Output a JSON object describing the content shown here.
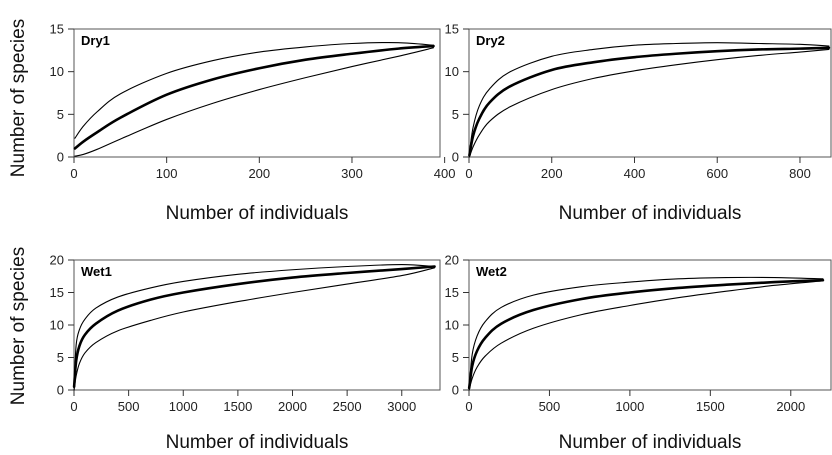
{
  "chart_data": [
    {
      "type": "line",
      "panel_label": "Dry1",
      "xlabel": "Number of individuals",
      "ylabel": "Number of species",
      "xlim": [
        0,
        395
      ],
      "ylim": [
        0,
        15
      ],
      "xticks": [
        0,
        100,
        200,
        300,
        400
      ],
      "yticks": [
        0,
        5,
        10,
        15
      ],
      "grid": false,
      "series": [
        {
          "style": "upper-bound",
          "x": [
            1,
            10,
            25,
            50,
            100,
            150,
            200,
            250,
            300,
            350,
            388
          ],
          "y": [
            2.2,
            3.6,
            5.3,
            7.4,
            9.8,
            11.3,
            12.3,
            12.9,
            13.3,
            13.4,
            13.1
          ]
        },
        {
          "style": "mean",
          "x": [
            1,
            10,
            25,
            50,
            100,
            150,
            200,
            250,
            300,
            350,
            388
          ],
          "y": [
            1.0,
            1.8,
            2.9,
            4.6,
            7.3,
            9.1,
            10.4,
            11.4,
            12.1,
            12.7,
            13.0
          ]
        },
        {
          "style": "lower-bound",
          "x": [
            1,
            10,
            25,
            50,
            100,
            150,
            200,
            250,
            300,
            350,
            388
          ],
          "y": [
            0.1,
            0.3,
            0.9,
            2.1,
            4.4,
            6.3,
            7.9,
            9.3,
            10.6,
            11.8,
            12.8
          ]
        }
      ]
    },
    {
      "type": "line",
      "panel_label": "Dry2",
      "xlabel": "Number of individuals",
      "ylabel": "",
      "xlim": [
        0,
        875
      ],
      "ylim": [
        0,
        15
      ],
      "xticks": [
        0,
        200,
        400,
        600,
        800
      ],
      "yticks": [
        0,
        5,
        10,
        15
      ],
      "grid": false,
      "series": [
        {
          "style": "upper-bound",
          "x": [
            1,
            10,
            25,
            50,
            100,
            200,
            300,
            400,
            500,
            600,
            700,
            800,
            870
          ],
          "y": [
            0.5,
            3.5,
            6.0,
            8.0,
            10.0,
            11.8,
            12.6,
            13.1,
            13.3,
            13.4,
            13.3,
            13.2,
            13.0
          ]
        },
        {
          "style": "mean",
          "x": [
            1,
            10,
            25,
            50,
            100,
            200,
            300,
            400,
            500,
            600,
            700,
            800,
            870
          ],
          "y": [
            0.2,
            2.5,
            4.5,
            6.4,
            8.3,
            10.2,
            11.1,
            11.7,
            12.1,
            12.4,
            12.6,
            12.7,
            12.8
          ]
        },
        {
          "style": "lower-bound",
          "x": [
            1,
            10,
            25,
            50,
            100,
            200,
            300,
            400,
            500,
            600,
            700,
            800,
            870
          ],
          "y": [
            0.0,
            1.2,
            2.6,
            4.2,
            5.9,
            7.9,
            9.2,
            10.1,
            10.8,
            11.4,
            11.9,
            12.3,
            12.6
          ]
        }
      ]
    },
    {
      "type": "line",
      "panel_label": "Wet1",
      "xlabel": "Number of individuals",
      "ylabel": "Number of species",
      "xlim": [
        0,
        3350
      ],
      "ylim": [
        0,
        20
      ],
      "xticks": [
        0,
        500,
        1000,
        1500,
        2000,
        2500,
        3000
      ],
      "yticks": [
        0,
        5,
        10,
        15,
        20
      ],
      "grid": false,
      "series": [
        {
          "style": "upper-bound",
          "x": [
            1,
            20,
            50,
            100,
            200,
            400,
            700,
            1000,
            1500,
            2000,
            2500,
            3000,
            3300
          ],
          "y": [
            1.0,
            7.0,
            9.3,
            10.9,
            12.6,
            14.3,
            15.7,
            16.7,
            17.8,
            18.5,
            19.0,
            19.3,
            19.0
          ]
        },
        {
          "style": "mean",
          "x": [
            1,
            20,
            50,
            100,
            200,
            400,
            700,
            1000,
            1500,
            2000,
            2500,
            3000,
            3300
          ],
          "y": [
            0.5,
            4.5,
            6.8,
            8.5,
            10.2,
            12.2,
            13.9,
            15.0,
            16.3,
            17.3,
            18.0,
            18.6,
            19.0
          ]
        },
        {
          "style": "lower-bound",
          "x": [
            1,
            20,
            50,
            100,
            200,
            400,
            700,
            1000,
            1500,
            2000,
            2500,
            3000,
            3300
          ],
          "y": [
            0.0,
            2.2,
            4.1,
            5.7,
            7.3,
            9.1,
            10.7,
            12.0,
            13.6,
            15.0,
            16.3,
            17.6,
            18.8
          ]
        }
      ]
    },
    {
      "type": "line",
      "panel_label": "Wet2",
      "xlabel": "Number of individuals",
      "ylabel": "",
      "xlim": [
        0,
        2250
      ],
      "ylim": [
        0,
        20
      ],
      "xticks": [
        0,
        500,
        1000,
        1500,
        2000
      ],
      "yticks": [
        0,
        5,
        10,
        15,
        20
      ],
      "grid": false,
      "series": [
        {
          "style": "upper-bound",
          "x": [
            1,
            20,
            50,
            100,
            200,
            400,
            700,
            1000,
            1300,
            1600,
            1900,
            2200
          ],
          "y": [
            0.5,
            5.5,
            8.3,
            10.5,
            12.7,
            14.6,
            15.9,
            16.6,
            17.1,
            17.3,
            17.3,
            17.1
          ]
        },
        {
          "style": "mean",
          "x": [
            1,
            20,
            50,
            100,
            200,
            400,
            700,
            1000,
            1300,
            1600,
            1900,
            2200
          ],
          "y": [
            0.3,
            3.7,
            6.0,
            8.0,
            10.2,
            12.3,
            14.0,
            15.0,
            15.7,
            16.2,
            16.6,
            16.9
          ]
        },
        {
          "style": "lower-bound",
          "x": [
            1,
            20,
            50,
            100,
            200,
            400,
            700,
            1000,
            1300,
            1600,
            1900,
            2200
          ],
          "y": [
            0.0,
            1.8,
            3.5,
            5.2,
            7.2,
            9.5,
            11.6,
            13.0,
            14.2,
            15.2,
            16.1,
            16.8
          ]
        }
      ]
    }
  ]
}
